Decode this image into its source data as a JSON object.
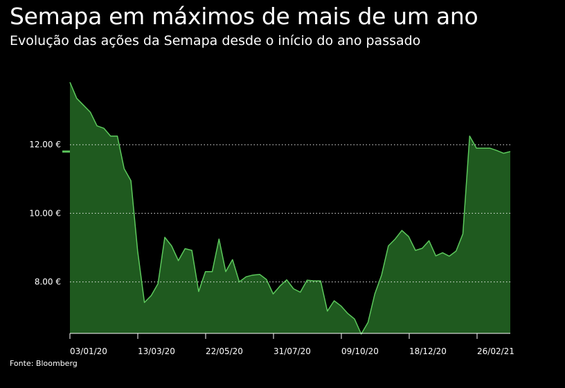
{
  "header": {
    "title": "Semapa em máximos de mais de um ano",
    "subtitle": "Evolução das ações da Semapa desde o início do ano passado"
  },
  "footer": {
    "source": "Fonte: Bloomberg"
  },
  "colors": {
    "background": "#000000",
    "area_fill": "#1f5a1f",
    "line": "#5cc85c",
    "grid": "#ffffff",
    "text": "#ffffff"
  },
  "chart_data": {
    "type": "area",
    "title": "Semapa em máximos de mais de um ano",
    "subtitle": "Evolução das ações da Semapa desde o início do ano passado",
    "xlabel": "",
    "ylabel": "",
    "y_ticks": [
      8,
      10,
      12
    ],
    "y_tick_labels": [
      "8.00 €",
      "10.00 €",
      "12.00 €"
    ],
    "x_tick_labels": [
      "03/01/20",
      "13/03/20",
      "22/05/20",
      "31/07/20",
      "09/10/20",
      "18/12/20",
      "26/02/21"
    ],
    "ylim": [
      6.5,
      14.0
    ],
    "grid": "horizontal dotted at tick values",
    "last_value_marker": 11.8,
    "series": [
      {
        "values": [
          13.82,
          13.35,
          13.15,
          12.95,
          12.55,
          12.48,
          12.25,
          12.25,
          11.3,
          10.95,
          8.9,
          7.4,
          7.6,
          7.95,
          9.3,
          9.05,
          8.62,
          8.97,
          8.92,
          7.72,
          8.3,
          8.3,
          9.25,
          8.3,
          8.65,
          8.0,
          8.15,
          8.2,
          8.22,
          8.07,
          7.65,
          7.88,
          8.06,
          7.8,
          7.7,
          8.05,
          8.03,
          8.03,
          7.15,
          7.45,
          7.3,
          7.08,
          6.92,
          6.48,
          6.82,
          7.65,
          8.2,
          9.05,
          9.25,
          9.5,
          9.32,
          8.92,
          8.98,
          9.2,
          8.76,
          8.85,
          8.75,
          8.9,
          9.4,
          12.25,
          11.9,
          11.9,
          11.9,
          11.83,
          11.75,
          11.8
        ]
      }
    ]
  }
}
